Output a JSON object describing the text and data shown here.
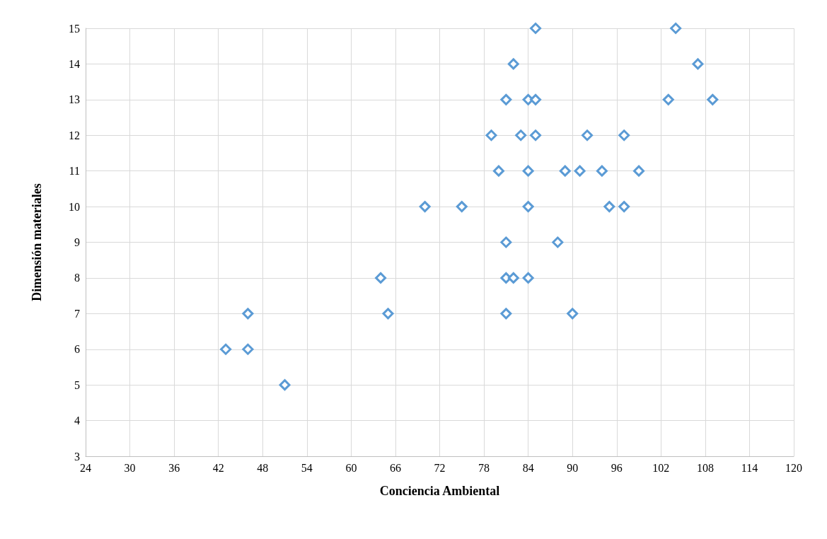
{
  "chart_data": {
    "type": "scatter",
    "xlabel": "Conciencia Ambiental",
    "ylabel": "Dimensión materiales",
    "x": [
      85,
      104,
      82,
      107,
      81,
      84,
      85,
      103,
      109,
      79,
      83,
      85,
      92,
      97,
      80,
      84,
      89,
      91,
      94,
      99,
      70,
      75,
      84,
      95,
      97,
      81,
      88,
      64,
      81,
      82,
      84,
      46,
      65,
      81,
      90,
      43,
      46,
      51
    ],
    "values": [
      15,
      15,
      14,
      14,
      13,
      13,
      13,
      13,
      13,
      12,
      12,
      12,
      12,
      12,
      11,
      11,
      11,
      11,
      11,
      11,
      10,
      10,
      10,
      10,
      10,
      9,
      9,
      8,
      8,
      8,
      8,
      7,
      7,
      7,
      7,
      6,
      6,
      5
    ],
    "color": "#5b9bd5",
    "marker": "diamond",
    "grid": true,
    "xlim": [
      24,
      120
    ],
    "xticks": [
      24,
      30,
      36,
      42,
      48,
      54,
      60,
      66,
      72,
      78,
      84,
      90,
      96,
      102,
      108,
      114,
      120
    ],
    "ylim": [
      3,
      15
    ],
    "yticks": [
      3,
      4,
      5,
      6,
      7,
      8,
      9,
      10,
      11,
      12,
      13,
      14,
      15
    ]
  }
}
